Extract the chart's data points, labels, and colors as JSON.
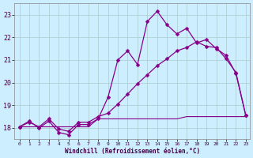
{
  "xlabel": "Windchill (Refroidissement éolien,°C)",
  "xlim_min": -0.5,
  "xlim_max": 23.4,
  "ylim_min": 17.5,
  "ylim_max": 23.5,
  "yticks": [
    18,
    19,
    20,
    21,
    22,
    23
  ],
  "xticks": [
    0,
    1,
    2,
    3,
    4,
    5,
    6,
    7,
    8,
    9,
    10,
    11,
    12,
    13,
    14,
    15,
    16,
    17,
    18,
    19,
    20,
    21,
    22,
    23
  ],
  "background_color": "#cceeff",
  "grid_color": "#aacccc",
  "line_color": "#880088",
  "line1_x": [
    0,
    1,
    2,
    3,
    4,
    5,
    6,
    7,
    8,
    9,
    10,
    11,
    12,
    13,
    14,
    15,
    16,
    17,
    18,
    19,
    20,
    21,
    22,
    23
  ],
  "line1_y": [
    18.05,
    18.3,
    18.0,
    18.3,
    17.8,
    17.7,
    18.15,
    18.15,
    18.4,
    19.35,
    21.0,
    21.4,
    20.8,
    22.7,
    23.15,
    22.55,
    22.15,
    22.4,
    21.75,
    21.9,
    21.5,
    21.2,
    20.4,
    18.55
  ],
  "line2_x": [
    0,
    1,
    2,
    3,
    4,
    5,
    6,
    7,
    8,
    9,
    10,
    11,
    12,
    13,
    14,
    15,
    16,
    17,
    18,
    19,
    20,
    21,
    22,
    23
  ],
  "line2_y": [
    18.05,
    18.25,
    18.05,
    18.4,
    17.95,
    17.85,
    18.25,
    18.25,
    18.5,
    18.65,
    19.05,
    19.5,
    19.95,
    20.35,
    20.75,
    21.05,
    21.4,
    21.55,
    21.8,
    21.6,
    21.55,
    21.05,
    20.45,
    18.55
  ],
  "line3_x": [
    0,
    1,
    2,
    3,
    4,
    5,
    6,
    7,
    8,
    9,
    10,
    11,
    12,
    13,
    14,
    15,
    16,
    17,
    18,
    19,
    20,
    21,
    22,
    23
  ],
  "line3_y": [
    18.05,
    18.05,
    18.05,
    18.05,
    18.05,
    18.05,
    18.05,
    18.05,
    18.4,
    18.4,
    18.4,
    18.4,
    18.4,
    18.4,
    18.4,
    18.4,
    18.4,
    18.5,
    18.5,
    18.5,
    18.5,
    18.5,
    18.5,
    18.5
  ],
  "marker": "D",
  "marker_size": 2.5,
  "linewidth1": 0.9,
  "linewidth2": 0.9,
  "linewidth3": 0.8,
  "xtick_fontsize": 4.5,
  "ytick_fontsize": 6.0,
  "xlabel_fontsize": 5.5
}
